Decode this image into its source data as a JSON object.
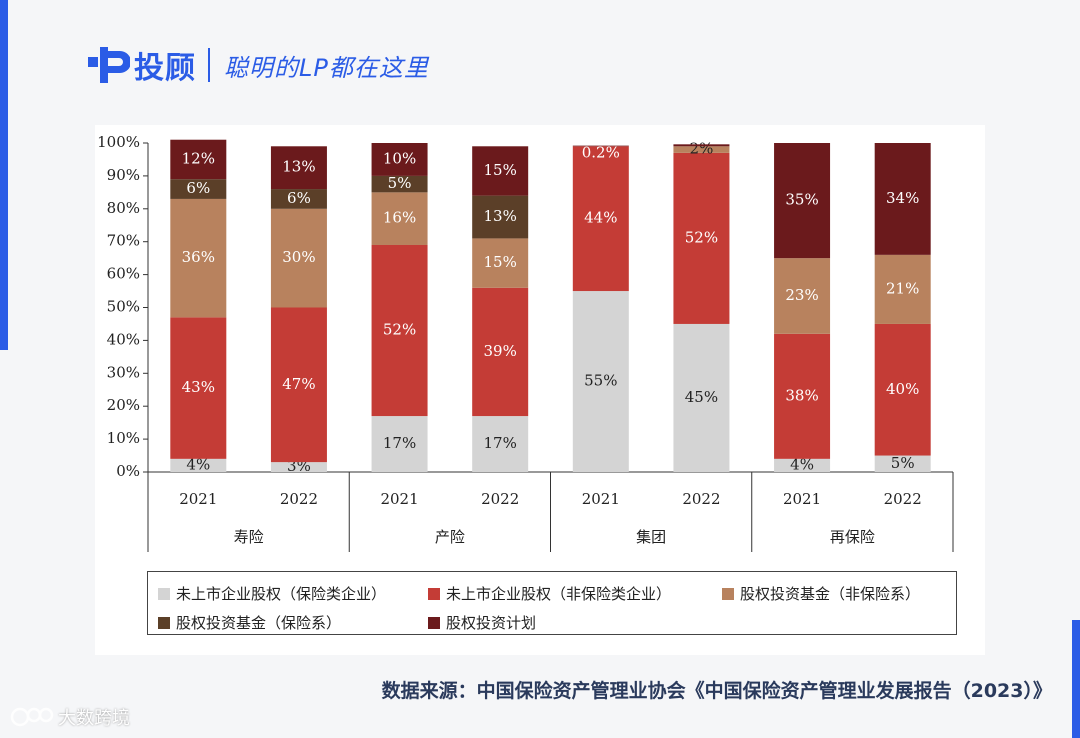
{
  "header": {
    "brand": "投顾",
    "slogan": "聪明的LP都在这里",
    "accent_color": "#2b5ce6"
  },
  "chart_data": {
    "type": "bar",
    "stacked": true,
    "ylim": [
      0,
      100
    ],
    "yticks": [
      "0%",
      "10%",
      "20%",
      "30%",
      "40%",
      "50%",
      "60%",
      "70%",
      "80%",
      "90%",
      "100%"
    ],
    "groups": [
      {
        "name": "寿险",
        "years": [
          "2021",
          "2022"
        ]
      },
      {
        "name": "产险",
        "years": [
          "2021",
          "2022"
        ]
      },
      {
        "name": "集团",
        "years": [
          "2021",
          "2022"
        ]
      },
      {
        "name": "再保险",
        "years": [
          "2021",
          "2022"
        ]
      }
    ],
    "categories": [
      "寿险 2021",
      "寿险 2022",
      "产险 2021",
      "产险 2022",
      "集团 2021",
      "集团 2022",
      "再保险 2021",
      "再保险 2022"
    ],
    "series": [
      {
        "name": "未上市企业股权（保险类企业）",
        "color": "#d4d4d4",
        "values": [
          4,
          3,
          17,
          17,
          55,
          45,
          4,
          5
        ],
        "labels": [
          "4%",
          "3%",
          "17%",
          "17%",
          "55%",
          "45%",
          "4%",
          "5%"
        ]
      },
      {
        "name": "未上市企业股权（非保险类企业）",
        "color": "#c43c36",
        "values": [
          43,
          47,
          52,
          39,
          44,
          52,
          38,
          40
        ],
        "labels": [
          "43%",
          "47%",
          "52%",
          "39%",
          "44%",
          "52%",
          "38%",
          "40%"
        ]
      },
      {
        "name": "股权投资基金（非保险系）",
        "color": "#b8825e",
        "values": [
          36,
          30,
          16,
          15,
          0,
          2,
          23,
          21
        ],
        "labels": [
          "36%",
          "30%",
          "16%",
          "15%",
          "",
          "2%",
          "23%",
          "21%"
        ]
      },
      {
        "name": "股权投资基金（保险系）",
        "color": "#5b3f28",
        "values": [
          6,
          6,
          5,
          13,
          0,
          0,
          0,
          0
        ],
        "labels": [
          "6%",
          "6%",
          "5%",
          "13%",
          "",
          "",
          "",
          ""
        ]
      },
      {
        "name": "股权投资计划",
        "color": "#6b1a1c",
        "values": [
          12,
          13,
          10,
          15,
          0.2,
          0.6,
          35,
          34
        ],
        "labels": [
          "12%",
          "13%",
          "10%",
          "15%",
          "0.2%",
          "",
          "35%",
          "34%"
        ]
      }
    ]
  },
  "source": "数据来源：中国保险资产管理业协会《中国保险资产管理业发展报告（2023）》",
  "watermark": "大数跨境"
}
